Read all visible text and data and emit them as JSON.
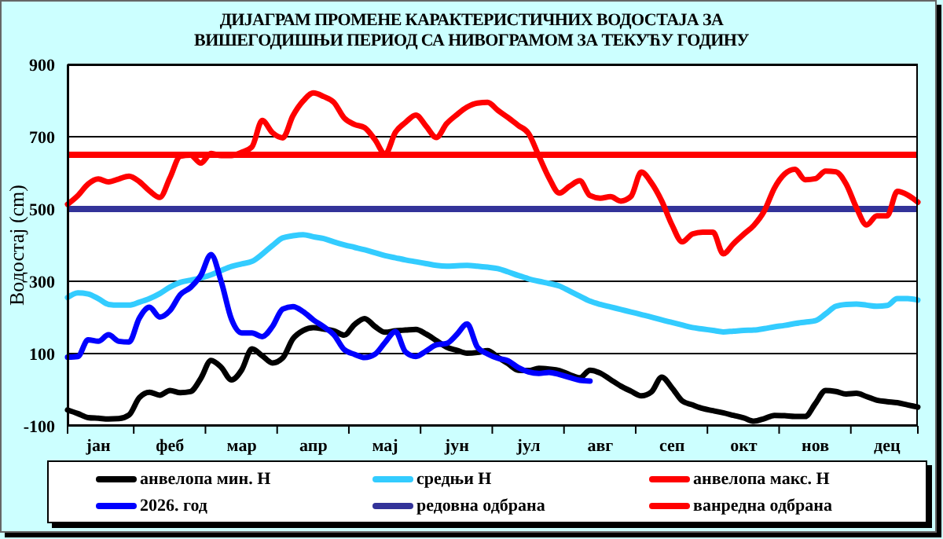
{
  "chart_data": {
    "type": "line",
    "title": "ДИЈАГРАМ ПРОМЕНЕ КАРАКТЕРИСТИЧНИХ ВОДОСТАЈА ЗА ВИШЕГОДИШЊИ ПЕРИОД СА НИВОГРАМОМ ЗА ТЕКУЋУ ГОДИНУ",
    "ylabel": "Водостај (cm)",
    "categories": [
      null,
      null,
      null,
      "јан",
      null,
      null,
      null,
      null,
      null,
      null,
      "феб",
      null,
      null,
      null,
      null,
      null,
      null,
      "мар",
      null,
      null,
      null,
      null,
      null,
      null,
      "апр",
      null,
      null,
      null,
      null,
      null,
      null,
      "мај",
      null,
      null,
      null,
      null,
      null,
      null,
      "јун",
      null,
      null,
      null,
      null,
      null,
      null,
      "јул",
      null,
      null,
      null,
      null,
      null,
      null,
      "авг",
      null,
      null,
      null,
      null,
      null,
      null,
      "сеп",
      null,
      null,
      null,
      null,
      null,
      null,
      "окт",
      null,
      null,
      null,
      null,
      null,
      null,
      "нов",
      null,
      null,
      null,
      null,
      null,
      null,
      "дец",
      null,
      null,
      null
    ],
    "ylim": [
      -100,
      900
    ],
    "yticks": [
      -100,
      100,
      300,
      500,
      700,
      900
    ],
    "grid": "y",
    "legend": "bottom",
    "marker": "none",
    "line_style": "solid",
    "series": [
      {
        "name": "анвелопа мин. Н",
        "color": "#000000",
        "values": [
          -56,
          -66,
          -77,
          -79,
          -81,
          -80,
          -70,
          -22,
          -7,
          -15,
          -2,
          -8,
          -5,
          31,
          81,
          62,
          27,
          55,
          113,
          94,
          74,
          88,
          141,
          164,
          172,
          168,
          163,
          151,
          180,
          197,
          175,
          159,
          163,
          165,
          167,
          154,
          136,
          118,
          109,
          101,
          103,
          108,
          90,
          72,
          54,
          53,
          59,
          57,
          53,
          42,
          33,
          54,
          46,
          28,
          10,
          -4,
          -17,
          -6,
          35,
          5,
          -31,
          -42,
          -52,
          -58,
          -64,
          -71,
          -78,
          -87,
          -80,
          -71,
          -72,
          -74,
          -74,
          -38,
          -2,
          -5,
          -12,
          -10,
          -19,
          -29,
          -33,
          -36,
          -42,
          -48
        ]
      },
      {
        "name": "средњи Н",
        "color": "#33ccff",
        "values": [
          255,
          268,
          265,
          252,
          236,
          234,
          234,
          242,
          252,
          266,
          284,
          297,
          303,
          309,
          318,
          330,
          341,
          348,
          355,
          375,
          399,
          420,
          426,
          429,
          423,
          418,
          409,
          401,
          394,
          387,
          379,
          371,
          365,
          359,
          354,
          349,
          344,
          342,
          343,
          344,
          342,
          339,
          335,
          326,
          316,
          307,
          300,
          294,
          287,
          273,
          259,
          245,
          236,
          229,
          222,
          215,
          208,
          201,
          193,
          186,
          179,
          172,
          168,
          164,
          160,
          162,
          164,
          165,
          169,
          174,
          178,
          183,
          187,
          191,
          210,
          231,
          236,
          237,
          234,
          231,
          233,
          252,
          252,
          248
        ]
      },
      {
        "name": "анвелопа макс. Н",
        "color": "#ff0000",
        "values": [
          513,
          537,
          569,
          583,
          575,
          583,
          591,
          576,
          550,
          532,
          587,
          646,
          649,
          627,
          654,
          648,
          648,
          657,
          672,
          745,
          711,
          697,
          758,
          799,
          821,
          811,
          795,
          752,
          734,
          725,
          692,
          652,
          712,
          740,
          760,
          729,
          698,
          736,
          761,
          782,
          793,
          795,
          773,
          753,
          731,
          709,
          647,
          586,
          544,
          563,
          578,
          537,
          530,
          534,
          522,
          535,
          602,
          572,
          522,
          456,
          409,
          431,
          436,
          436,
          376,
          404,
          430,
          455,
          494,
          558,
          597,
          610,
          581,
          584,
          605,
          603,
          569,
          504,
          456,
          481,
          481,
          549,
          539,
          519
        ]
      },
      {
        "name": "2026. год",
        "color": "#0000ff",
        "values": [
          90,
          92,
          138,
          134,
          152,
          134,
          132,
          198,
          228,
          201,
          219,
          263,
          283,
          316,
          374,
          299,
          195,
          157,
          157,
          147,
          175,
          223,
          230,
          216,
          193,
          174,
          152,
          111,
          98,
          89,
          98,
          131,
          161,
          104,
          92,
          107,
          124,
          128,
          153,
          182,
          118,
          99,
          87,
          80,
          61,
          49,
          45,
          48,
          42,
          34,
          26,
          24,
          null,
          null,
          null,
          null,
          null,
          null,
          null,
          null,
          null,
          null,
          null,
          null,
          null,
          null,
          null,
          null,
          null,
          null,
          null,
          null,
          null,
          null,
          null,
          null,
          null,
          null,
          null,
          null,
          null,
          null,
          null,
          null
        ]
      }
    ],
    "ref_lines": [
      {
        "axis": "y",
        "value": 500,
        "label": "редовна одбрана",
        "color": "#333399"
      },
      {
        "axis": "y",
        "value": 650,
        "label": "ванредна одбрана",
        "color": "#ff0000"
      }
    ]
  }
}
